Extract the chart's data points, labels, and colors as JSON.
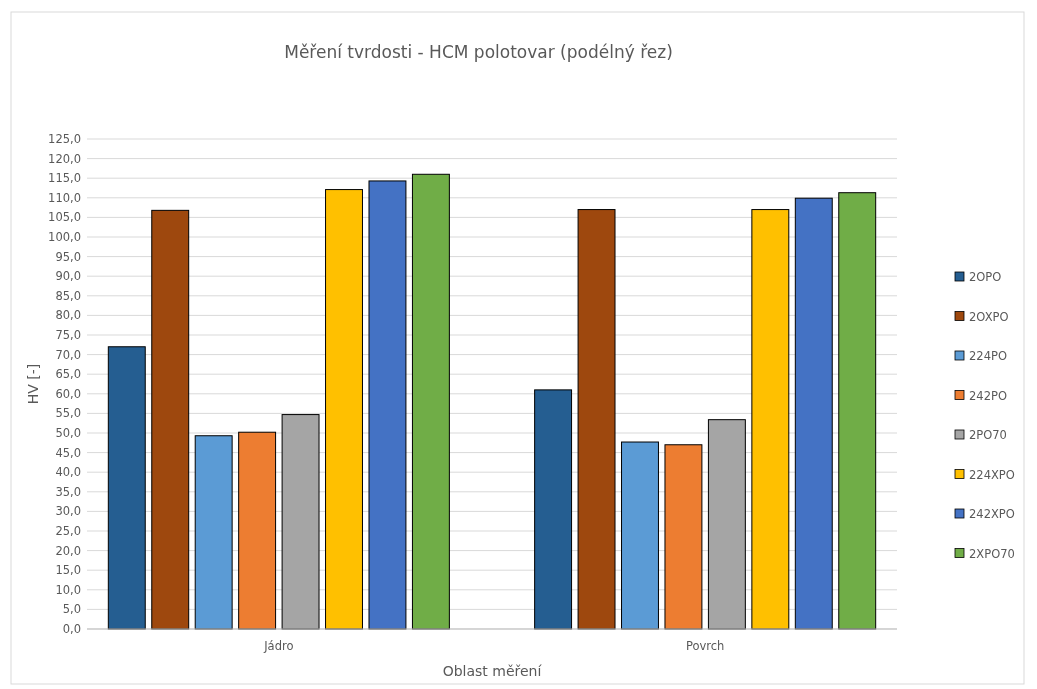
{
  "chart_data": {
    "type": "bar",
    "title": "Měření tvrdosti - HCM polotovar (podélný řez)",
    "xlabel": "Oblast měření",
    "ylabel": "HV [-]",
    "categories": [
      "Jádro",
      "Povrch"
    ],
    "series": [
      {
        "name": "2OPO",
        "color": "#255e91",
        "values": [
          72.0,
          61.0
        ]
      },
      {
        "name": "2OXPO",
        "color": "#9e480e",
        "values": [
          106.8,
          107.0
        ]
      },
      {
        "name": "224PO",
        "color": "#5b9bd5",
        "values": [
          49.3,
          47.7
        ]
      },
      {
        "name": "242PO",
        "color": "#ed7d31",
        "values": [
          50.2,
          47.0
        ]
      },
      {
        "name": "2PO70",
        "color": "#a5a5a5",
        "values": [
          54.7,
          53.4
        ]
      },
      {
        "name": "224XPO",
        "color": "#ffc000",
        "values": [
          112.1,
          107.0
        ]
      },
      {
        "name": "242XPO",
        "color": "#4472c4",
        "values": [
          114.3,
          109.9
        ]
      },
      {
        "name": "2XPO70",
        "color": "#70ad47",
        "values": [
          116.0,
          111.3
        ]
      }
    ],
    "ylim": [
      0,
      125
    ],
    "yticks": [
      {
        "value": 0,
        "label": "0,0"
      },
      {
        "value": 5,
        "label": "5,0"
      },
      {
        "value": 10,
        "label": "10,0"
      },
      {
        "value": 15,
        "label": "15,0"
      },
      {
        "value": 20,
        "label": "20,0"
      },
      {
        "value": 25,
        "label": "25,0"
      },
      {
        "value": 30,
        "label": "30,0"
      },
      {
        "value": 35,
        "label": "35,0"
      },
      {
        "value": 40,
        "label": "40,0"
      },
      {
        "value": 45,
        "label": "45,0"
      },
      {
        "value": 50,
        "label": "50,0"
      },
      {
        "value": 55,
        "label": "55,0"
      },
      {
        "value": 60,
        "label": "60,0"
      },
      {
        "value": 65,
        "label": "65,0"
      },
      {
        "value": 70,
        "label": "70,0"
      },
      {
        "value": 75,
        "label": "75,0"
      },
      {
        "value": 80,
        "label": "80,0"
      },
      {
        "value": 85,
        "label": "85,0"
      },
      {
        "value": 90,
        "label": "90,0"
      },
      {
        "value": 95,
        "label": "95,0"
      },
      {
        "value": 100,
        "label": "100,0"
      },
      {
        "value": 105,
        "label": "105,0"
      },
      {
        "value": 110,
        "label": "110,0"
      },
      {
        "value": 115,
        "label": "115,0"
      },
      {
        "value": 120,
        "label": "120,0"
      },
      {
        "value": 125,
        "label": "125,0"
      }
    ],
    "grid": "y",
    "legend": "right"
  }
}
